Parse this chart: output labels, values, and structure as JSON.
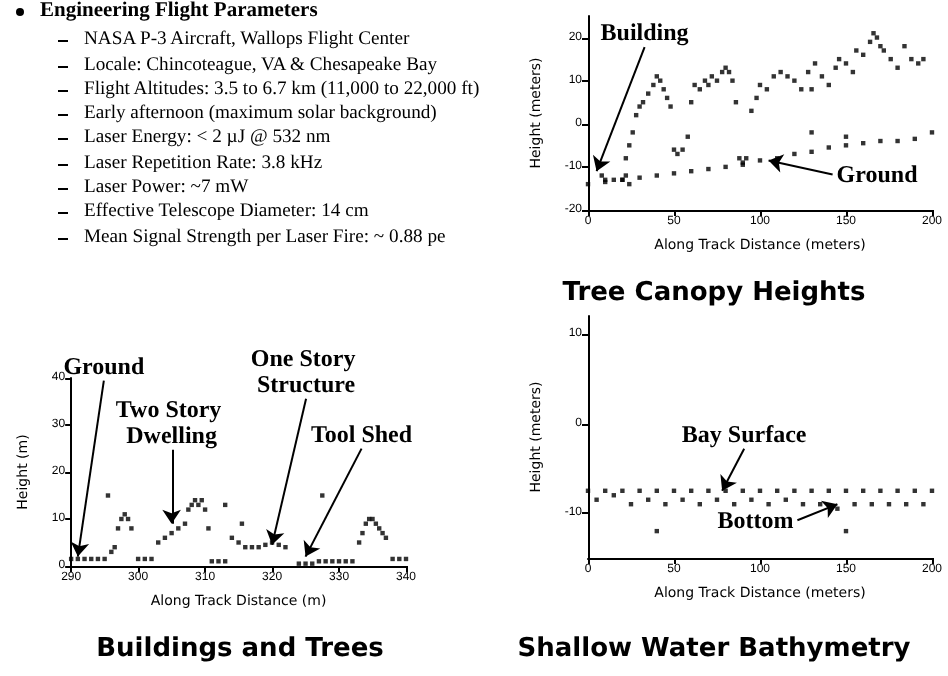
{
  "chart_data": [
    {
      "type": "other",
      "title": "Engineering Flight Parameters",
      "annotations": [
        "NASA P-3 Aircraft, Wallops Flight Center",
        "Locale: Chincoteague, VA & Chesapeake Bay",
        "Flight Altitudes: 3.5 to 6.7 km (11,000 to 22,000 ft)",
        "Early afternoon (maximum solar background)",
        "Laser Energy: < 2 µJ @ 532 nm",
        "Laser Repetition Rate: 3.8 kHz",
        "Laser Power: ~7 mW",
        "Effective Telescope Diameter: 14 cm",
        "Mean Signal Strength per Laser Fire: ~ 0.88 pe"
      ]
    },
    {
      "type": "scatter",
      "title": "Tree Canopy Heights",
      "xlabel": "Along Track Distance (meters)",
      "ylabel": "Height (meters)",
      "xlim": [
        0,
        200
      ],
      "ylim": [
        -20,
        25
      ],
      "xticks": [
        0,
        50,
        100,
        150,
        200
      ],
      "yticks": [
        -20,
        -10,
        0,
        10,
        20
      ],
      "grid": false,
      "marker": "square",
      "series": [
        {
          "color": "#000000",
          "x": [
            0,
            10,
            20,
            30,
            40,
            50,
            60,
            70,
            80,
            90,
            100,
            110,
            120,
            130,
            140,
            150,
            160,
            170,
            180,
            190,
            200,
            8,
            10,
            15,
            20,
            22,
            24,
            22,
            24,
            26,
            28,
            30,
            32,
            35,
            38,
            40,
            42,
            44,
            46,
            48,
            50,
            52,
            55,
            58,
            60,
            62,
            65,
            68,
            70,
            72,
            75,
            78,
            80,
            82,
            84,
            86,
            88,
            90,
            92,
            95,
            98,
            100,
            104,
            108,
            112,
            116,
            120,
            124,
            128,
            130,
            132,
            136,
            140,
            144,
            146,
            150,
            154,
            156,
            160,
            164,
            166,
            168,
            170,
            172,
            176,
            180,
            184,
            188,
            192,
            195,
            130,
            150
          ],
          "values": [
            -14,
            -13.5,
            -13,
            -12.5,
            -12,
            -11.5,
            -11,
            -10.5,
            -10,
            -9.5,
            -8.5,
            -8,
            -7,
            -6.5,
            -5.5,
            -5,
            -4.5,
            -4,
            -4,
            -3.5,
            -2,
            -12,
            -13,
            -13,
            -13,
            -12,
            -14,
            -8,
            -5,
            -2,
            2,
            4,
            5,
            7,
            9,
            11,
            10,
            8,
            6,
            4,
            -6,
            -7,
            -6,
            -3,
            5,
            9,
            8,
            10,
            9,
            11,
            10,
            12,
            13,
            12,
            10,
            5,
            -8,
            -9,
            -8,
            3,
            6,
            9,
            8,
            11,
            12,
            11,
            10,
            8,
            12,
            8,
            14,
            11,
            9,
            13,
            15,
            14,
            12,
            17,
            16,
            19,
            21,
            20,
            18,
            17,
            15,
            13,
            18,
            15,
            14,
            15,
            -2,
            -3
          ]
        }
      ],
      "annotations": [
        {
          "text": "Building",
          "x": 5,
          "y": -11
        },
        {
          "text": "Ground",
          "x": 105,
          "y": -8.5
        }
      ]
    },
    {
      "type": "scatter",
      "title": "Buildings and Trees",
      "xlabel": "Along Track Distance (m)",
      "ylabel": "Height (m)",
      "xlim": [
        290,
        340
      ],
      "ylim": [
        0,
        40
      ],
      "xticks": [
        290,
        300,
        310,
        320,
        330,
        340
      ],
      "yticks": [
        0,
        10,
        20,
        30,
        40
      ],
      "grid": false,
      "marker": "square",
      "series": [
        {
          "color": "#000000",
          "x": [
            290,
            291,
            292,
            293,
            294,
            295,
            296,
            296.5,
            297,
            297.5,
            298,
            298.5,
            299,
            300,
            301,
            302,
            303,
            304,
            305,
            306,
            307,
            307.5,
            308,
            308.5,
            309,
            309.5,
            310,
            310.5,
            311,
            312,
            313,
            314,
            315,
            316,
            317,
            318,
            319,
            320,
            321,
            322,
            324,
            325,
            326,
            327,
            328,
            329,
            330,
            331,
            332,
            333,
            333.5,
            334,
            334.5,
            335,
            335.5,
            336,
            336.5,
            337,
            338,
            339,
            340,
            295.5,
            313,
            315.5,
            327.5
          ],
          "values": [
            1.5,
            1.5,
            1.5,
            1.5,
            1.5,
            1.5,
            3,
            4,
            8,
            10,
            11,
            10,
            8,
            1.5,
            1.5,
            1.5,
            5,
            6,
            7,
            8,
            9,
            12,
            13,
            14,
            13,
            14,
            12,
            8,
            1,
            1,
            1,
            6,
            5,
            4,
            4,
            4,
            4.5,
            5,
            4.5,
            4,
            0.5,
            0.5,
            0.5,
            1,
            1,
            1,
            1,
            1,
            1,
            5,
            7,
            9,
            10,
            10,
            9,
            8,
            7,
            6,
            1.5,
            1.5,
            1.5,
            15,
            13,
            9,
            15
          ]
        }
      ],
      "annotations": [
        {
          "text": "Ground",
          "x": 291,
          "y": 2
        },
        {
          "text": "Two Story Dwelling",
          "x": 305,
          "y": 9
        },
        {
          "text": "One Story Structure",
          "x": 320,
          "y": 4.5
        },
        {
          "text": "Tool Shed",
          "x": 325,
          "y": 2
        }
      ]
    },
    {
      "type": "scatter",
      "title": "Shallow Water Bathymetry",
      "xlabel": "Along Track Distance (meters)",
      "ylabel": "Height (meters)",
      "xlim": [
        0,
        200
      ],
      "ylim": [
        -15,
        12
      ],
      "xticks": [
        0,
        50,
        100,
        150,
        200
      ],
      "yticks": [
        -10,
        0,
        10
      ],
      "grid": false,
      "marker": "square",
      "series": [
        {
          "color": "#000000",
          "x": [
            0,
            10,
            20,
            30,
            40,
            50,
            60,
            70,
            80,
            90,
            100,
            110,
            120,
            130,
            140,
            150,
            160,
            170,
            180,
            190,
            200,
            5,
            15,
            25,
            35,
            45,
            55,
            65,
            75,
            85,
            95,
            105,
            115,
            125,
            135,
            145,
            155,
            165,
            175,
            185,
            195,
            40,
            150
          ],
          "values": [
            -7.5,
            -7.5,
            -7.5,
            -7.5,
            -7.5,
            -7.5,
            -7.5,
            -7.5,
            -7.5,
            -7.5,
            -7.5,
            -7.5,
            -7.5,
            -7.5,
            -7.5,
            -7.5,
            -7.5,
            -7.5,
            -7.5,
            -7.5,
            -7.5,
            -8.5,
            -8,
            -9,
            -8.5,
            -9,
            -8.5,
            -9,
            -8.5,
            -9,
            -8.5,
            -9,
            -8.5,
            -9,
            -9,
            -9.5,
            -9,
            -9,
            -9,
            -9,
            -9,
            -12,
            -12
          ]
        }
      ],
      "annotations": [
        {
          "text": "Bay Surface",
          "x": 78,
          "y": -7.5
        },
        {
          "text": "Bottom",
          "x": 145,
          "y": -9
        }
      ]
    }
  ]
}
